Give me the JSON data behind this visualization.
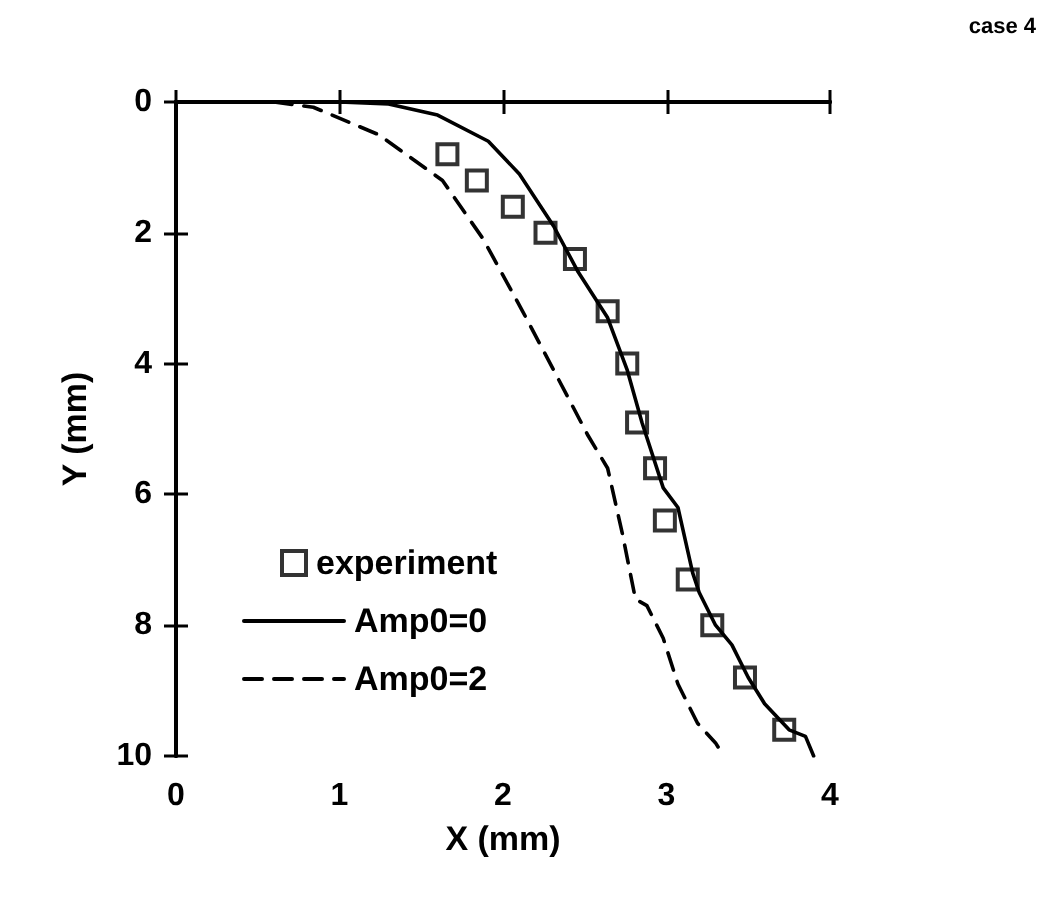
{
  "chart_data": {
    "type": "line",
    "xlabel": "X (mm)",
    "ylabel": "Y (mm)",
    "annotations": [
      "case 4"
    ],
    "xlim": [
      0,
      4
    ],
    "xticks": [
      0,
      1,
      2,
      3,
      4
    ],
    "ylim": [
      10,
      0
    ],
    "yticks": [
      0,
      2,
      4,
      6,
      8,
      10
    ],
    "grid": false,
    "legend": "bottom left",
    "series": [
      {
        "name": "experiment",
        "type": "scatter",
        "marker": "square",
        "color": "#000000",
        "x": [
          1.66,
          1.84,
          2.06,
          2.26,
          2.44,
          2.64,
          2.76,
          2.82,
          2.93,
          2.99,
          3.13,
          3.28,
          3.48,
          3.72
        ],
        "values": [
          0.8,
          1.2,
          1.6,
          2.0,
          2.4,
          3.2,
          4.0,
          4.9,
          5.6,
          6.4,
          7.3,
          8.0,
          8.8,
          9.6
        ]
      },
      {
        "name": "Amp0=0",
        "line_style": "solid",
        "color": "#000000",
        "x": [
          0.7,
          1.0,
          1.3,
          1.6,
          1.91,
          2.1,
          2.31,
          2.46,
          2.64,
          2.76,
          2.85,
          2.98,
          3.07,
          3.16,
          3.2,
          3.3,
          3.4,
          3.5,
          3.6,
          3.75,
          3.85,
          3.9
        ],
        "values": [
          0,
          0,
          0.03,
          0.2,
          0.6,
          1.1,
          1.9,
          2.6,
          3.3,
          4.1,
          4.9,
          5.9,
          6.2,
          7.2,
          7.5,
          8.0,
          8.3,
          8.8,
          9.2,
          9.6,
          9.7,
          10
        ]
      },
      {
        "name": "Amp0=2",
        "line_style": "dashed",
        "color": "#000000",
        "x": [
          0.6,
          0.84,
          1.24,
          1.63,
          1.88,
          2.12,
          2.31,
          2.52,
          2.64,
          2.73,
          2.81,
          2.88,
          2.98,
          3.07,
          3.19,
          3.3,
          3.35
        ],
        "values": [
          0,
          0.08,
          0.5,
          1.2,
          2.1,
          3.2,
          4.1,
          5.1,
          5.6,
          6.6,
          7.6,
          7.7,
          8.2,
          8.9,
          9.5,
          9.8,
          10
        ]
      }
    ]
  }
}
